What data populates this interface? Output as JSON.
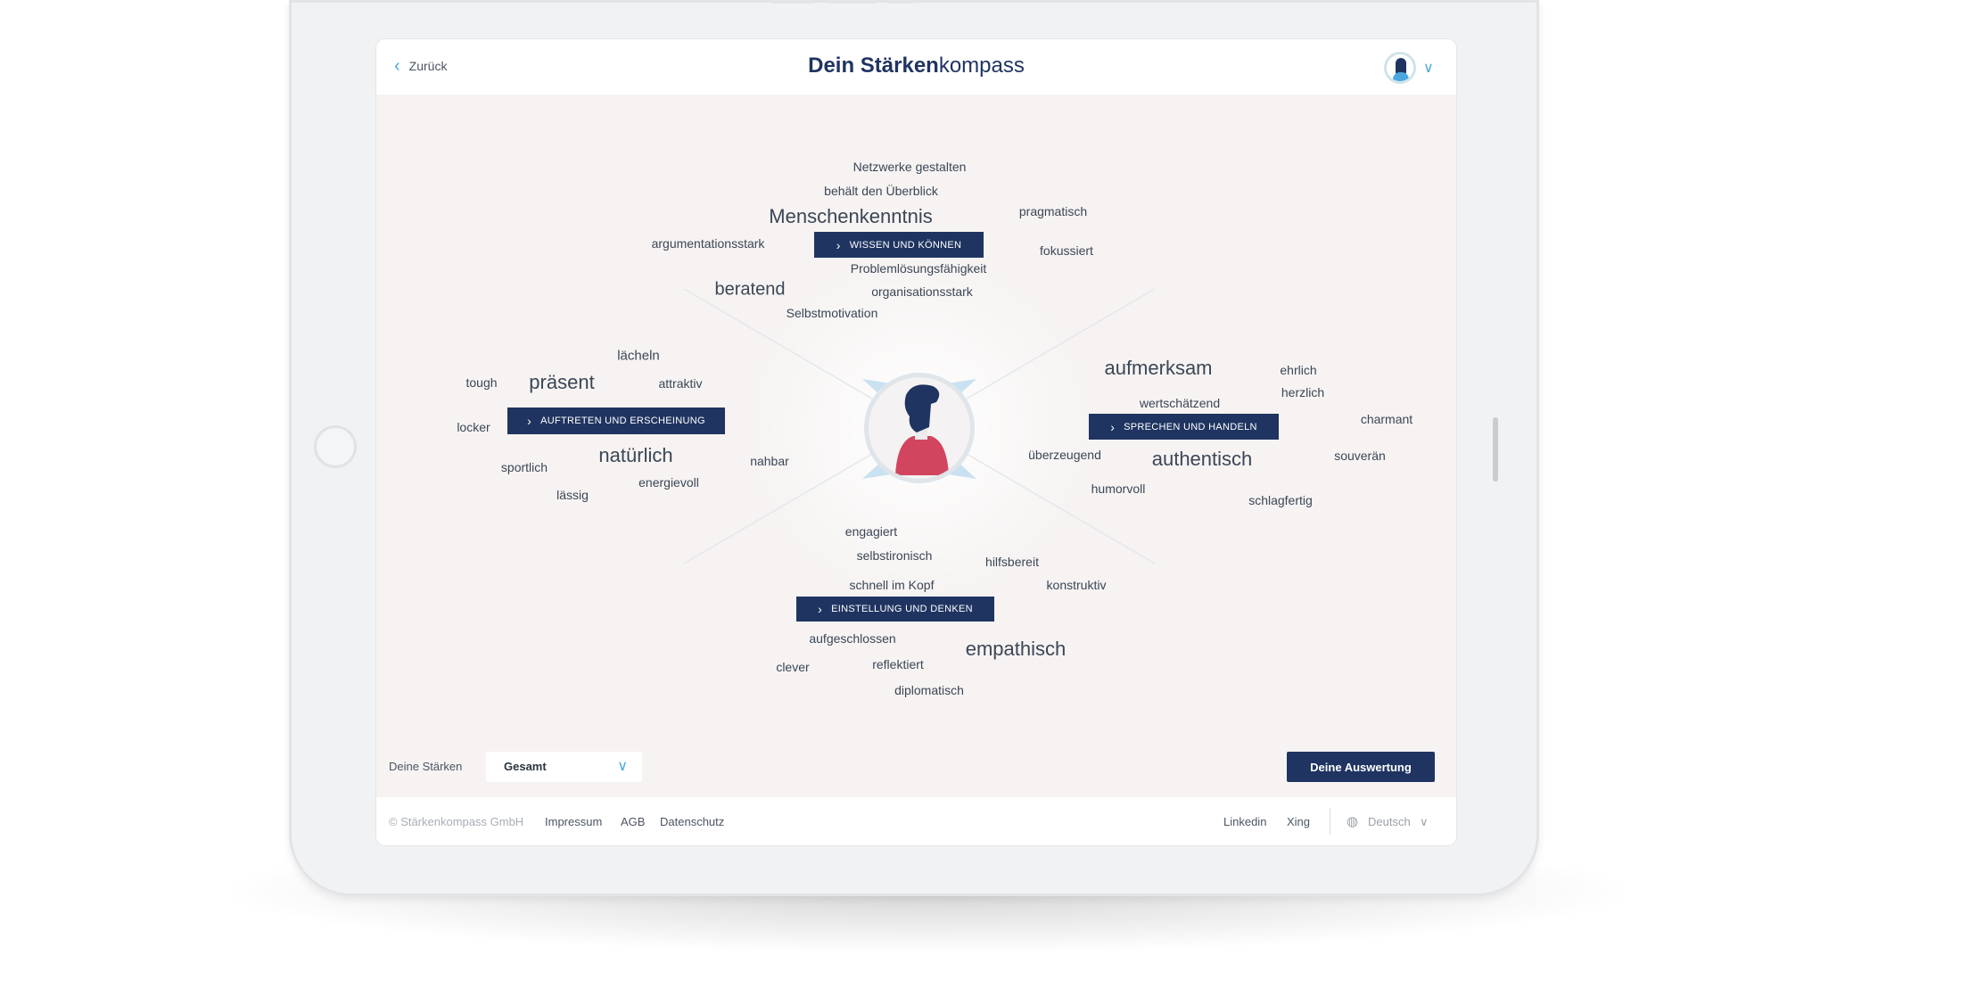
{
  "header": {
    "back_label": "Zurück",
    "title_bold": "Dein Stärken",
    "title_light": "kompass"
  },
  "categories": [
    {
      "label": "WISSEN UND KÖNNEN",
      "words": [
        "Netzwerke gestalten",
        "behält den Überblick",
        "Menschenkenntnis",
        "pragmatisch",
        "argumentationsstark",
        "fokussiert",
        "Problemlösungsfähigkeit",
        "beratend",
        "organisationsstark",
        "Selbstmotivation"
      ]
    },
    {
      "label": "AUFTRETEN UND ERSCHEINUNG",
      "words": [
        "lächeln",
        "tough",
        "präsent",
        "attraktiv",
        "locker",
        "natürlich",
        "nahbar",
        "sportlich",
        "energievoll",
        "lässig"
      ]
    },
    {
      "label": "SPRECHEN UND HANDELN",
      "words": [
        "aufmerksam",
        "ehrlich",
        "herzlich",
        "wertschätzend",
        "charmant",
        "überzeugend",
        "authentisch",
        "souverän",
        "humorvoll",
        "schlagfertig"
      ]
    },
    {
      "label": "EINSTELLUNG UND DENKEN",
      "words": [
        "engagiert",
        "selbstironisch",
        "hilfsbereit",
        "schnell im Kopf",
        "konstruktiv",
        "aufgeschlossen",
        "empathisch",
        "clever",
        "reflektiert",
        "diplomatisch"
      ]
    }
  ],
  "controls": {
    "strengths_label": "Deine Stärken",
    "strengths_select": "Gesamt",
    "evaluation_button": "Deine Auswertung"
  },
  "footer": {
    "copyright": "© Stärkenkompass GmbH",
    "links": [
      "Impressum",
      "AGB",
      "Datenschutz"
    ],
    "social": [
      "Linkedin",
      "Xing"
    ],
    "language": "Deutsch"
  },
  "colors": {
    "navy": "#1f3461",
    "accent": "#4aa8e0",
    "shirt": "#d1455f"
  }
}
